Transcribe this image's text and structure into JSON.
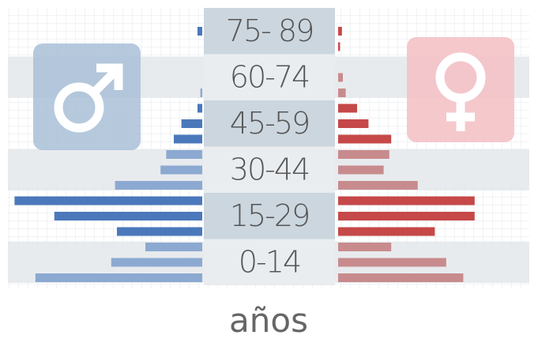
{
  "chart_data": {
    "type": "population-pyramid",
    "groups": [
      "75- 89",
      "60-74",
      "45-59",
      "30-44",
      "15-29",
      "0-14"
    ],
    "bars_per_group": 3,
    "xlabel": "años",
    "xlim": [
      0,
      10
    ],
    "series": [
      {
        "side": "left",
        "colors": [
          "#4a78bb",
          "#8ca9d1"
        ],
        "values": [
          0,
          0.25,
          0,
          0,
          0,
          0.1,
          0.25,
          1.1,
          1.5,
          1.9,
          2.2,
          4.6,
          9.9,
          7.8,
          4.5,
          3,
          4.8,
          8.8
        ]
      },
      {
        "side": "right",
        "colors": [
          "#c64848",
          "#c88b8d"
        ],
        "values": [
          0,
          0.2,
          0.1,
          0,
          0.25,
          0.4,
          1,
          1.6,
          2.8,
          2.7,
          2.4,
          4.2,
          7.2,
          7.2,
          5.1,
          2.8,
          5.7,
          6.6
        ]
      }
    ]
  }
}
